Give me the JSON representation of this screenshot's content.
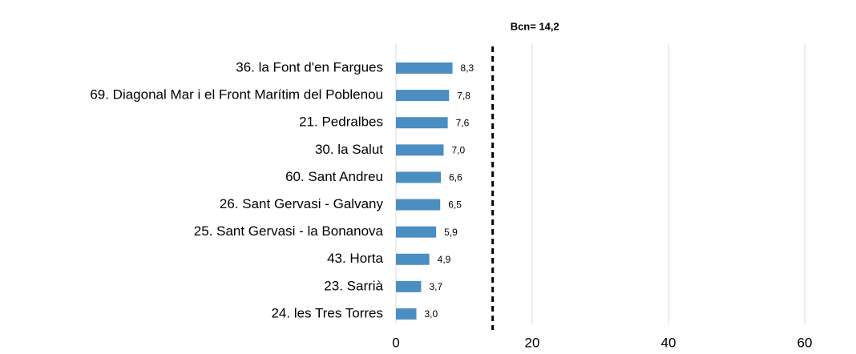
{
  "chart_data": {
    "type": "barh",
    "categories": [
      "36. la Font d'en Fargues",
      "69. Diagonal Mar i el Front Marítim del Poblenou",
      "21. Pedralbes",
      "30. la Salut",
      "60. Sant Andreu",
      "26. Sant Gervasi - Galvany",
      "25. Sant Gervasi - la Bonanova",
      "43. Horta",
      "23. Sarrià",
      "24. les Tres Torres"
    ],
    "values": [
      8.3,
      7.8,
      7.6,
      7.0,
      6.6,
      6.5,
      5.9,
      4.9,
      3.7,
      3.0
    ],
    "value_labels": [
      "8,3",
      "7,8",
      "7,6",
      "7,0",
      "6,6",
      "6,5",
      "5,9",
      "4,9",
      "3,7",
      "3,0"
    ],
    "color": "#4a8ec2",
    "xlim": [
      0,
      66
    ],
    "xticks": [
      0,
      20,
      40,
      60
    ],
    "grid": true,
    "reference_line": {
      "value": 14.2,
      "label": "Bcn= 14,2"
    }
  }
}
